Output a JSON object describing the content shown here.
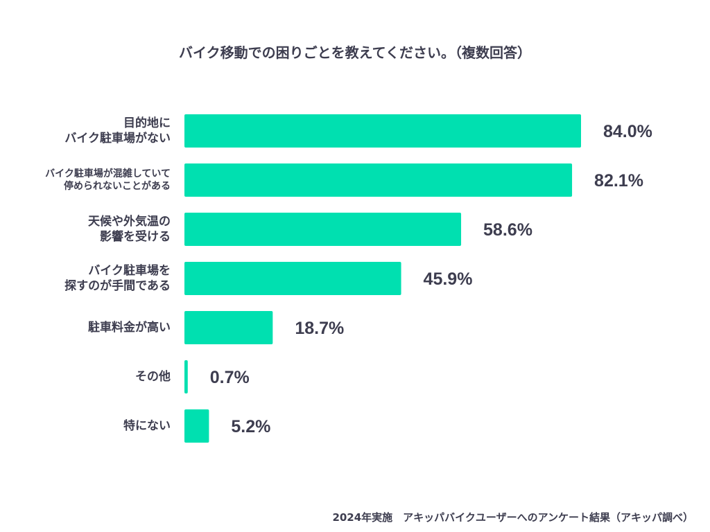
{
  "title": "バイク移動での困りごとを教えてください。（複数回答）",
  "footer": "2024年実施　アキッパバイクユーザーへのアンケート結果（アキッパ調べ）",
  "colors": {
    "bar": "#00e0b0",
    "text": "#3d3d4f"
  },
  "chart_data": {
    "type": "bar",
    "orientation": "horizontal",
    "title": "バイク移動での困りごとを教えてください。（複数回答）",
    "categories": [
      [
        "目的地に",
        "バイク駐車場がない"
      ],
      [
        "バイク駐車場が混雑していて",
        "停められないことがある"
      ],
      [
        "天候や外気温の",
        "影響を受ける"
      ],
      [
        "バイク駐車場を",
        "探すのが手間である"
      ],
      [
        "駐車料金が高い"
      ],
      [
        "その他"
      ],
      [
        "特にない"
      ]
    ],
    "values": [
      84.0,
      82.1,
      58.6,
      45.9,
      18.7,
      0.7,
      5.2
    ],
    "value_labels": [
      "84.0%",
      "82.1%",
      "58.6%",
      "45.9%",
      "18.7%",
      "0.7%",
      "5.2%"
    ],
    "unit": "%",
    "xlim": [
      0,
      84.0
    ],
    "grid": false,
    "legend": "none"
  }
}
